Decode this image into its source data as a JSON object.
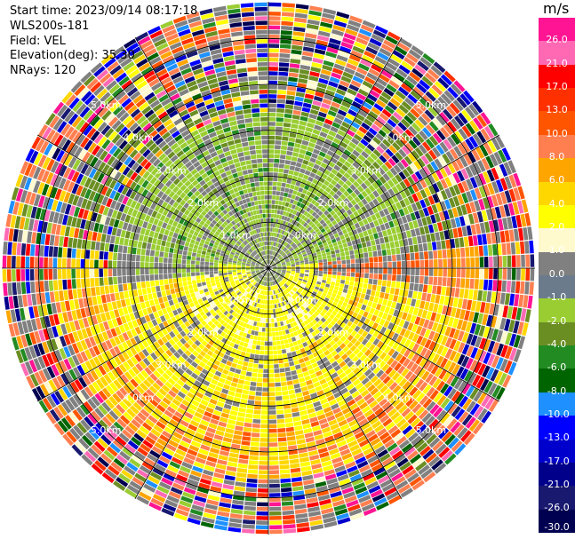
{
  "info": {
    "start_time": "Start time: 2023/09/14 08:17:18",
    "device": "WLS200s-181",
    "field": "Field: VEL",
    "elevation": "Elevation(deg): 35.30",
    "nrays": "NRays: 120"
  },
  "chart_data": {
    "type": "heatmap",
    "projection": "polar-ppi",
    "title": "",
    "range_rings_km": [
      1.0,
      2.0,
      3.0,
      4.0,
      5.0
    ],
    "ring_label_text": [
      "1.0km",
      "2.0km",
      "3.0km",
      "4.0km",
      "5.0km"
    ],
    "max_range_km": 5.8,
    "n_rays": 120,
    "colorbar": {
      "unit": "m/s",
      "tick_labels": [
        "26.0",
        "21.0",
        "17.0",
        "13.0",
        "10.0",
        "8.0",
        "6.0",
        "4.0",
        "2.0",
        "1.0",
        "0.0",
        "-1.0",
        "-2.0",
        "-4.0",
        "-6.0",
        "-8.0",
        "-10.0",
        "-13.0",
        "-17.0",
        "-21.0",
        "-26.0",
        "-30.0"
      ],
      "colors": [
        "#ff1493",
        "#ff69b4",
        "#ff0000",
        "#ff3000",
        "#ff5500",
        "#ff7f50",
        "#ffa500",
        "#ffd700",
        "#ffff00",
        "#fffacd",
        "#808080",
        "#6b7b8c",
        "#9acd32",
        "#6b8e23",
        "#228b22",
        "#006400",
        "#1e90ff",
        "#0000ff",
        "#0000cd",
        "#00008b",
        "#191970",
        "#000050"
      ]
    },
    "regions": [
      {
        "name": "inner-gray",
        "r_km": [
          0,
          1.8
        ],
        "dominant": "0.0"
      },
      {
        "name": "green-north",
        "r_km": [
          0.8,
          3.3
        ],
        "az_deg": [
          270,
          90
        ],
        "dominant": "-2.0"
      },
      {
        "name": "yellow-south",
        "r_km": [
          0,
          4.3
        ],
        "az_deg": [
          90,
          270
        ],
        "dominant": "2.0"
      },
      {
        "name": "orange-outer",
        "r_km": [
          3.0,
          5.8
        ],
        "dominant": "8.0"
      },
      {
        "name": "noise-outer",
        "r_km": [
          4.5,
          5.8
        ],
        "dominant": "mixed"
      }
    ]
  }
}
